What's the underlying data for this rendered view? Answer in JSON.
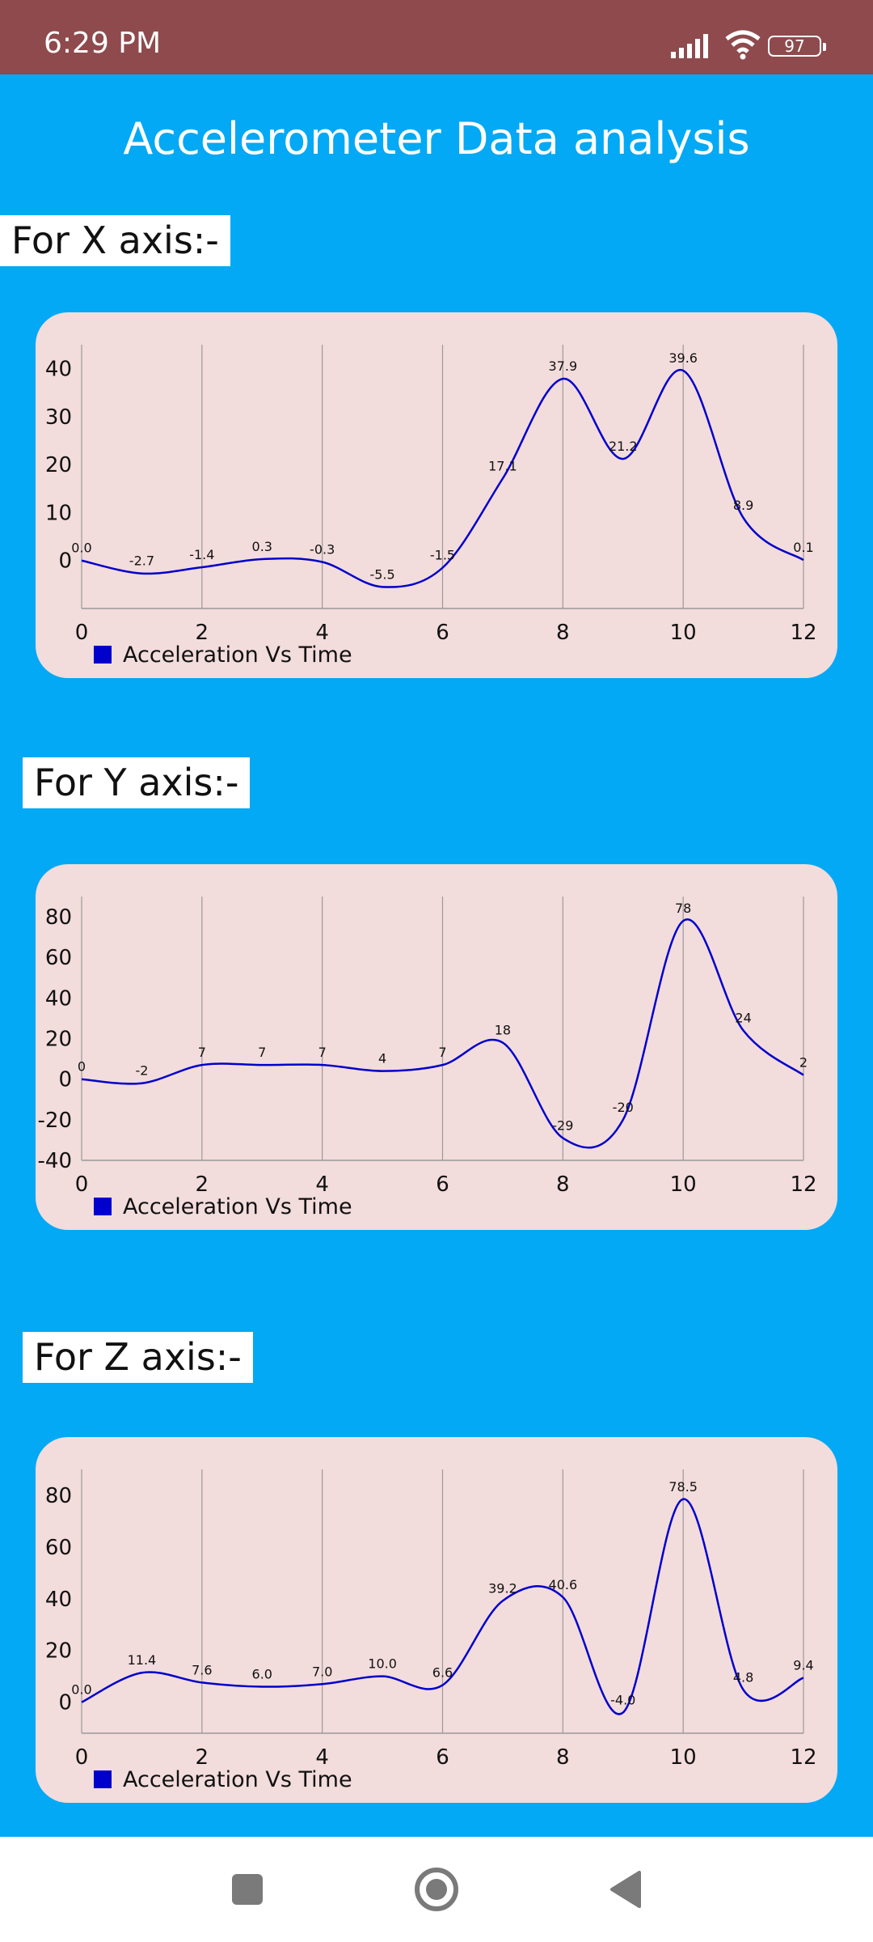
{
  "status_bar": {
    "time": "6:29 PM",
    "battery": "97",
    "icons": [
      "signal-icon",
      "wifi-icon",
      "battery-icon"
    ]
  },
  "app": {
    "title": "Accelerometer Data analysis"
  },
  "colors": {
    "status_bar": "#8E4A4D",
    "background": "#03A9F4",
    "card": "#F3DCDC",
    "series": "#0000CC"
  },
  "sections": [
    {
      "label": "For X axis:-"
    },
    {
      "label": "For Y axis:-"
    },
    {
      "label": "For Z axis:-"
    }
  ],
  "chart_data": [
    {
      "type": "line",
      "smooth": true,
      "xlim": [
        0,
        12
      ],
      "ylim": [
        -10,
        45
      ],
      "xticks": [
        0,
        2,
        4,
        6,
        8,
        10,
        12
      ],
      "yticks": [
        0,
        10,
        20,
        30,
        40
      ],
      "x_gridlines": true,
      "legend_position": "bottom-left",
      "series": [
        {
          "name": "Acceleration Vs Time",
          "x": [
            0,
            1,
            2,
            3,
            4,
            5,
            6,
            7,
            8,
            9,
            10,
            11,
            12
          ],
          "values": [
            0.0,
            -2.7,
            -1.4,
            0.3,
            -0.3,
            -5.5,
            -1.5,
            17.1,
            37.9,
            21.2,
            39.6,
            8.9,
            0.1
          ],
          "labels": [
            "0.0",
            "-2.7",
            "-1.4",
            "0.3",
            "-0.3",
            "-5.5",
            "-1.5",
            "17.1",
            "37.9",
            "21.2",
            "39.6",
            "8.9",
            "0.1"
          ]
        }
      ]
    },
    {
      "type": "line",
      "smooth": true,
      "xlim": [
        0,
        12
      ],
      "ylim": [
        -40,
        90
      ],
      "xticks": [
        0,
        2,
        4,
        6,
        8,
        10,
        12
      ],
      "yticks": [
        -40,
        -20,
        0,
        20,
        40,
        60,
        80
      ],
      "x_gridlines": true,
      "legend_position": "bottom-left",
      "series": [
        {
          "name": "Acceleration Vs Time",
          "x": [
            0,
            1,
            2,
            3,
            4,
            5,
            6,
            7,
            8,
            9,
            10,
            11,
            12
          ],
          "values": [
            0,
            -2,
            7,
            7,
            7,
            4,
            7,
            18,
            -29,
            -20,
            78,
            24,
            2
          ],
          "labels": [
            "0",
            "-2",
            "7",
            "7",
            "7",
            "4",
            "7",
            "18",
            "-29",
            "-20",
            "78",
            "24",
            "2"
          ]
        }
      ]
    },
    {
      "type": "line",
      "smooth": true,
      "xlim": [
        0,
        12
      ],
      "ylim": [
        -12,
        90
      ],
      "xticks": [
        0,
        2,
        4,
        6,
        8,
        10,
        12
      ],
      "yticks": [
        0,
        20,
        40,
        60,
        80
      ],
      "x_gridlines": true,
      "legend_position": "bottom-left",
      "series": [
        {
          "name": "Acceleration Vs Time",
          "x": [
            0,
            1,
            2,
            3,
            4,
            5,
            6,
            7,
            8,
            9,
            10,
            11,
            12
          ],
          "values": [
            0.0,
            11.4,
            7.6,
            6.0,
            7.0,
            10.0,
            6.6,
            39.2,
            40.6,
            -4.0,
            78.5,
            4.8,
            9.4
          ],
          "labels": [
            "0.0",
            "11.4",
            "7.6",
            "6.0",
            "7.0",
            "10.0",
            "6.6",
            "39.2",
            "40.6",
            "-4.0",
            "78.5",
            "4.8",
            "9.4"
          ]
        }
      ]
    }
  ],
  "nav": {
    "buttons": [
      "square-recents-icon",
      "circle-home-icon",
      "triangle-back-icon"
    ]
  }
}
